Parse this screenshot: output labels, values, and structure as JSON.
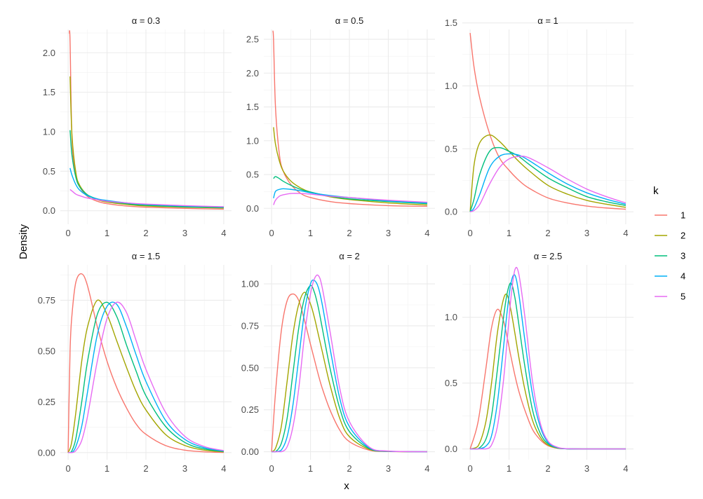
{
  "chart_data": {
    "type": "line",
    "xlabel": "x",
    "ylabel": "Density",
    "legend": {
      "title": "k",
      "position": "right",
      "entries": [
        "1",
        "2",
        "3",
        "4",
        "5"
      ]
    },
    "colors": [
      "#F8766D",
      "#A3A500",
      "#00BF7D",
      "#00B0F6",
      "#E76BF3"
    ],
    "grid": true,
    "xlim": [
      0,
      4
    ],
    "x_ticks": [
      "0",
      "1",
      "2",
      "3",
      "4"
    ],
    "panels": [
      {
        "title": "α = 0.3",
        "ylim": [
          0,
          2.25
        ],
        "y_ticks": [
          0,
          0.5,
          1,
          1.5,
          2
        ],
        "y_tick_labels": [
          "0.0",
          "0.5",
          "1.0",
          "1.5",
          "2.0"
        ],
        "x": [
          0.03,
          0.05,
          0.1,
          0.2,
          0.3,
          0.5,
          0.75,
          1,
          1.5,
          2,
          3,
          4
        ],
        "series": [
          {
            "name": "1",
            "values": [
              2.25,
              2.15,
              0.9,
              0.45,
              0.3,
              0.18,
              0.12,
              0.09,
              0.06,
              0.045,
              0.03,
              0.02
            ]
          },
          {
            "name": "2",
            "values": [
              null,
              1.7,
              0.95,
              0.48,
              0.32,
              0.2,
              0.14,
              0.11,
              0.08,
              0.06,
              0.045,
              0.035
            ]
          },
          {
            "name": "3",
            "values": [
              null,
              1.02,
              0.7,
              0.42,
              0.3,
              0.2,
              0.15,
              0.12,
              0.09,
              0.07,
              0.05,
              0.04
            ]
          },
          {
            "name": "4",
            "values": [
              null,
              0.54,
              0.45,
              0.33,
              0.26,
              0.19,
              0.15,
              0.13,
              0.1,
              0.08,
              0.06,
              0.05
            ]
          },
          {
            "name": "5",
            "values": [
              null,
              0.27,
              0.25,
              0.21,
              0.19,
              0.16,
              0.14,
              0.12,
              0.1,
              0.085,
              0.065,
              0.05
            ]
          }
        ]
      },
      {
        "title": "α = 0.5",
        "ylim": [
          0,
          2.62
        ],
        "y_ticks": [
          0,
          0.5,
          1,
          1.5,
          2,
          2.5
        ],
        "y_tick_labels": [
          "0.0",
          "0.5",
          "1.0",
          "1.5",
          "2.0",
          "2.5"
        ],
        "x": [
          0.03,
          0.05,
          0.1,
          0.2,
          0.3,
          0.5,
          0.75,
          1,
          1.5,
          2,
          3,
          4
        ],
        "series": [
          {
            "name": "1",
            "values": [
              2.62,
              2.5,
              1.5,
              0.8,
              0.55,
              0.35,
              0.22,
              0.16,
              0.1,
              0.07,
              0.04,
              0.03
            ]
          },
          {
            "name": "2",
            "values": [
              null,
              1.2,
              0.95,
              0.7,
              0.55,
              0.4,
              0.3,
              0.24,
              0.17,
              0.13,
              0.08,
              0.05
            ]
          },
          {
            "name": "3",
            "values": [
              null,
              0.44,
              0.47,
              0.44,
              0.4,
              0.34,
              0.28,
              0.24,
              0.18,
              0.14,
              0.1,
              0.07
            ]
          },
          {
            "name": "4",
            "values": [
              null,
              0.15,
              0.25,
              0.28,
              0.29,
              0.28,
              0.26,
              0.23,
              0.19,
              0.16,
              0.11,
              0.08
            ]
          },
          {
            "name": "5",
            "values": [
              null,
              0.05,
              0.12,
              0.18,
              0.2,
              0.22,
              0.22,
              0.21,
              0.18,
              0.16,
              0.12,
              0.09
            ]
          }
        ]
      },
      {
        "title": "α = 1",
        "ylim": [
          0,
          1.42
        ],
        "y_ticks": [
          0,
          0.5,
          1,
          1.5
        ],
        "y_tick_labels": [
          "0.0",
          "0.5",
          "1.0",
          "1.5"
        ],
        "x": [
          0,
          0.1,
          0.25,
          0.5,
          0.75,
          1,
          1.25,
          1.5,
          2,
          2.5,
          3,
          3.5,
          4
        ],
        "series": [
          {
            "name": "1",
            "values": [
              1.42,
              1.15,
              0.9,
              0.62,
              0.43,
              0.33,
              0.25,
              0.19,
              0.11,
              0.07,
              0.045,
              0.03,
              0.02
            ]
          },
          {
            "name": "2",
            "values": [
              0,
              0.37,
              0.55,
              0.61,
              0.56,
              0.48,
              0.4,
              0.33,
              0.21,
              0.14,
              0.09,
              0.06,
              0.035
            ]
          },
          {
            "name": "3",
            "values": [
              0,
              0.1,
              0.3,
              0.48,
              0.51,
              0.48,
              0.44,
              0.38,
              0.27,
              0.19,
              0.12,
              0.08,
              0.05
            ]
          },
          {
            "name": "4",
            "values": [
              0,
              0.03,
              0.14,
              0.35,
              0.44,
              0.46,
              0.45,
              0.41,
              0.31,
              0.22,
              0.15,
              0.1,
              0.06
            ]
          },
          {
            "name": "5",
            "values": [
              0,
              0.01,
              0.06,
              0.22,
              0.35,
              0.42,
              0.44,
              0.43,
              0.35,
              0.26,
              0.18,
              0.12,
              0.07
            ]
          }
        ]
      },
      {
        "title": "α = 1.5",
        "ylim": [
          0,
          0.88
        ],
        "y_ticks": [
          0,
          0.25,
          0.5,
          0.75
        ],
        "y_tick_labels": [
          "0.00",
          "0.25",
          "0.50",
          "0.75"
        ],
        "x": [
          0,
          0.05,
          0.1,
          0.2,
          0.35,
          0.5,
          0.75,
          1,
          1.25,
          1.5,
          1.75,
          2,
          2.5,
          3,
          3.5,
          4
        ],
        "series": [
          {
            "name": "1",
            "values": [
              0,
              0.5,
              0.68,
              0.84,
              0.88,
              0.82,
              0.62,
              0.45,
              0.32,
              0.22,
              0.14,
              0.09,
              0.035,
              0.012,
              0.004,
              0.001
            ]
          },
          {
            "name": "2",
            "values": [
              0,
              0.02,
              0.06,
              0.2,
              0.45,
              0.62,
              0.75,
              0.68,
              0.55,
              0.42,
              0.3,
              0.21,
              0.09,
              0.035,
              0.012,
              0.004
            ]
          },
          {
            "name": "3",
            "values": [
              0,
              0,
              0.01,
              0.07,
              0.25,
              0.45,
              0.68,
              0.74,
              0.67,
              0.53,
              0.4,
              0.28,
              0.13,
              0.05,
              0.018,
              0.006
            ]
          },
          {
            "name": "4",
            "values": [
              0,
              0,
              0,
              0.03,
              0.13,
              0.3,
              0.58,
              0.72,
              0.73,
              0.62,
              0.48,
              0.35,
              0.16,
              0.065,
              0.024,
              0.008
            ]
          },
          {
            "name": "5",
            "values": [
              0,
              0,
              0,
              0.01,
              0.06,
              0.18,
              0.45,
              0.66,
              0.74,
              0.69,
              0.55,
              0.41,
              0.2,
              0.08,
              0.03,
              0.01
            ]
          }
        ]
      },
      {
        "title": "α = 2",
        "ylim": [
          0,
          1.06
        ],
        "y_ticks": [
          0,
          0.25,
          0.5,
          0.75,
          1
        ],
        "y_tick_labels": [
          "0.00",
          "0.25",
          "0.50",
          "0.75",
          "1.00"
        ],
        "x": [
          0,
          0.1,
          0.25,
          0.4,
          0.55,
          0.7,
          0.85,
          1,
          1.1,
          1.2,
          1.3,
          1.5,
          1.75,
          2,
          2.5,
          3,
          4
        ],
        "series": [
          {
            "name": "1",
            "values": [
              0,
              0.35,
              0.72,
              0.9,
              0.94,
              0.9,
              0.78,
              0.64,
              0.55,
              0.46,
              0.38,
              0.25,
              0.13,
              0.06,
              0.01,
              0.001,
              0
            ]
          },
          {
            "name": "2",
            "values": [
              0,
              0.02,
              0.15,
              0.42,
              0.7,
              0.88,
              0.95,
              0.88,
              0.8,
              0.7,
              0.6,
              0.4,
              0.2,
              0.09,
              0.015,
              0.002,
              0
            ]
          },
          {
            "name": "3",
            "values": [
              0,
              0,
              0.05,
              0.2,
              0.47,
              0.74,
              0.92,
              0.99,
              0.95,
              0.86,
              0.74,
              0.5,
              0.26,
              0.12,
              0.02,
              0.002,
              0
            ]
          },
          {
            "name": "4",
            "values": [
              0,
              0,
              0.01,
              0.09,
              0.28,
              0.56,
              0.84,
              1.0,
              1.02,
              0.98,
              0.88,
              0.62,
              0.32,
              0.15,
              0.025,
              0.003,
              0
            ]
          },
          {
            "name": "5",
            "values": [
              0,
              0,
              0,
              0.03,
              0.15,
              0.38,
              0.7,
              0.94,
              1.03,
              1.05,
              0.98,
              0.72,
              0.38,
              0.18,
              0.03,
              0.004,
              0
            ]
          }
        ]
      },
      {
        "title": "α = 2.5",
        "ylim": [
          0,
          1.37
        ],
        "y_ticks": [
          0,
          0.5,
          1
        ],
        "y_tick_labels": [
          "0.0",
          "0.5",
          "1.0"
        ],
        "x": [
          0,
          0.2,
          0.4,
          0.55,
          0.7,
          0.85,
          0.95,
          1.05,
          1.15,
          1.25,
          1.4,
          1.6,
          1.8,
          2,
          2.25,
          2.5,
          3,
          4
        ],
        "series": [
          {
            "name": "1",
            "values": [
              0,
              0.2,
              0.6,
              0.92,
              1.06,
              0.98,
              0.85,
              0.7,
              0.56,
              0.44,
              0.3,
              0.15,
              0.07,
              0.025,
              0.005,
              0.001,
              0,
              0
            ]
          },
          {
            "name": "2",
            "values": [
              0,
              0.02,
              0.2,
              0.5,
              0.88,
              1.13,
              1.17,
              1.05,
              0.88,
              0.7,
              0.46,
              0.22,
              0.09,
              0.03,
              0.006,
              0.001,
              0,
              0
            ]
          },
          {
            "name": "3",
            "values": [
              0,
              0,
              0.07,
              0.25,
              0.6,
              0.98,
              1.18,
              1.26,
              1.15,
              0.95,
              0.64,
              0.3,
              0.12,
              0.04,
              0.008,
              0.001,
              0,
              0
            ]
          },
          {
            "name": "4",
            "values": [
              0,
              0,
              0.02,
              0.1,
              0.35,
              0.75,
              1.04,
              1.26,
              1.32,
              1.18,
              0.84,
              0.42,
              0.17,
              0.05,
              0.01,
              0.001,
              0,
              0
            ]
          },
          {
            "name": "5",
            "values": [
              0,
              0,
              0,
              0.03,
              0.17,
              0.5,
              0.82,
              1.15,
              1.36,
              1.33,
              1.02,
              0.52,
              0.2,
              0.06,
              0.012,
              0.002,
              0,
              0
            ]
          }
        ]
      }
    ]
  }
}
